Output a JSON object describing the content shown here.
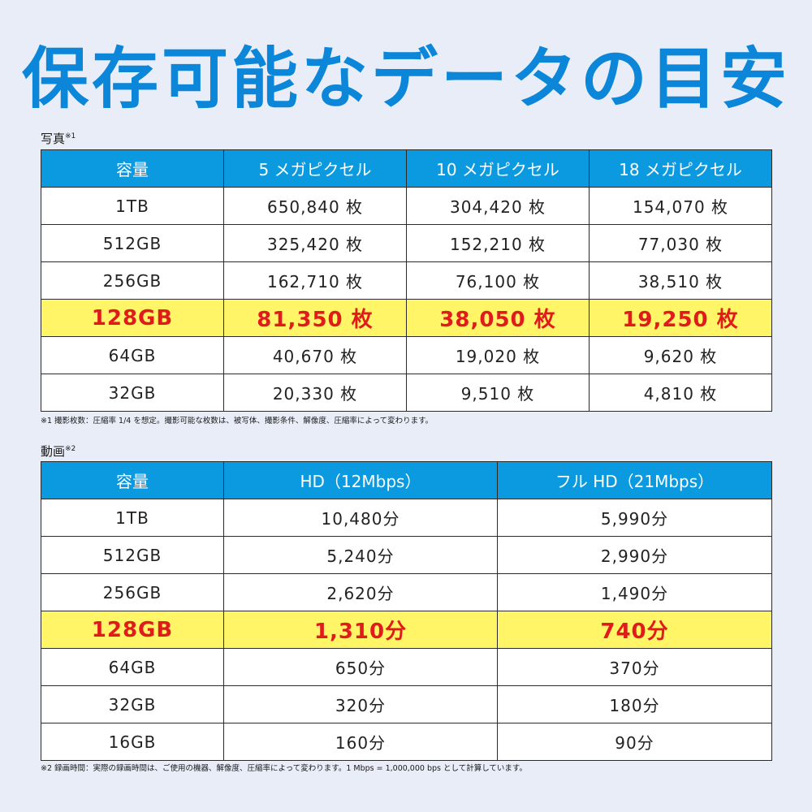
{
  "title": "保存可能なデータの目安",
  "photo": {
    "label": "写真",
    "label_mark": "※1",
    "headers": [
      "容量",
      "5 メガピクセル",
      "10 メガピクセル",
      "18 メガピクセル"
    ],
    "rows": [
      [
        "1TB",
        "650,840 枚",
        "304,420 枚",
        "154,070 枚"
      ],
      [
        "512GB",
        "325,420 枚",
        "152,210 枚",
        "77,030 枚"
      ],
      [
        "256GB",
        "162,710 枚",
        "76,100 枚",
        "38,510 枚"
      ],
      [
        "128GB",
        "81,350 枚",
        "38,050 枚",
        "19,250 枚"
      ],
      [
        "64GB",
        "40,670 枚",
        "19,020 枚",
        "9,620 枚"
      ],
      [
        "32GB",
        "20,330 枚",
        "9,510 枚",
        "4,810 枚"
      ]
    ],
    "highlight_row": 3,
    "note": "※1 撮影枚数：圧縮率 1/4 を想定。撮影可能な枚数は、被写体、撮影条件、解像度、圧縮率によって変わります。"
  },
  "video": {
    "label": "動画",
    "label_mark": "※2",
    "headers": [
      "容量",
      "HD（12Mbps）",
      "フル HD（21Mbps）"
    ],
    "rows": [
      [
        "1TB",
        "10,480分",
        "5,990分"
      ],
      [
        "512GB",
        "5,240分",
        "2,990分"
      ],
      [
        "256GB",
        "2,620分",
        "1,490分"
      ],
      [
        "128GB",
        "1,310分",
        "740分"
      ],
      [
        "64GB",
        "650分",
        "370分"
      ],
      [
        "32GB",
        "320分",
        "180分"
      ],
      [
        "16GB",
        "160分",
        "90分"
      ]
    ],
    "highlight_row": 3,
    "note": "※2 録画時間：実際の録画時間は、ご使用の機器、解像度、圧縮率によって変わります。1 Mbps = 1,000,000 bps として計算しています。"
  },
  "colors": {
    "title": "#0b86d8",
    "header_bg": "#0b9ae0",
    "highlight_bg": "#fff566",
    "highlight_text": "#e01b1b",
    "page_bg": "#e8edf8"
  }
}
